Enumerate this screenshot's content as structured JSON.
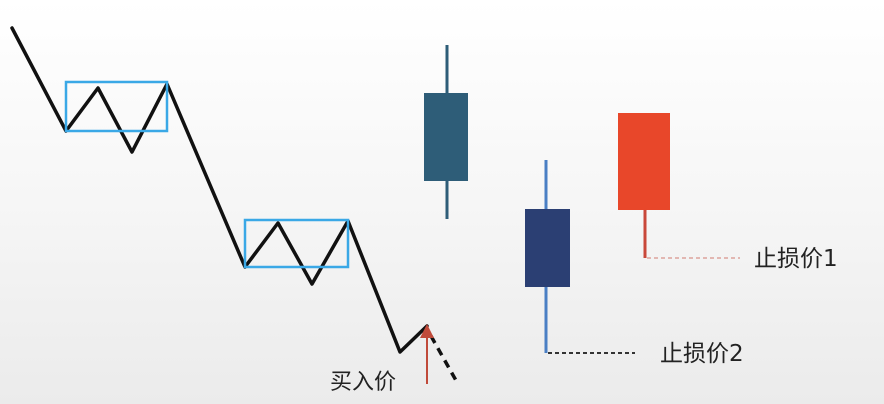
{
  "labels": {
    "buy_price": "买入价",
    "stop_loss_1": "止损价1",
    "stop_loss_2": "止损价2"
  },
  "colors": {
    "price_line": "#111111",
    "consolidation_box": "#3aa8e6",
    "candle_top": "#2e5d78",
    "candle_middle": "#2b3f73",
    "candle_middle_wick": "#4a7fc4",
    "candle_right": "#e8472a",
    "candle_right_wick": "#c9483a",
    "buy_arrow": "#c04a3a",
    "stop_line_1": "#e2b7b2",
    "stop_line_2": "#333333"
  }
}
